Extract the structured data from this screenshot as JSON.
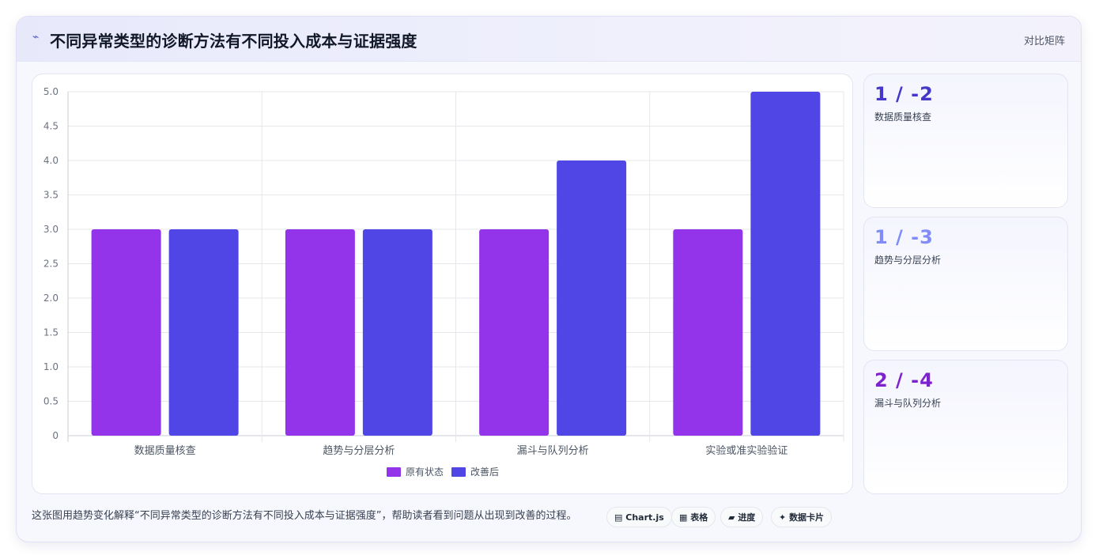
{
  "header": {
    "icon": "trend-line-icon",
    "title": "不同异常类型的诊断方法有不同投入成本与证据强度",
    "action_label": "对比矩阵"
  },
  "chart_data": {
    "type": "bar",
    "categories": [
      "数据质量核查",
      "趋势与分层分析",
      "漏斗与队列分析",
      "实验或准实验验证"
    ],
    "series": [
      {
        "name": "原有状态",
        "values": [
          3,
          3,
          3,
          3
        ],
        "color": "#9333ea"
      },
      {
        "name": "改善后",
        "values": [
          3,
          3,
          4,
          5
        ],
        "color": "#4f46e5"
      }
    ],
    "ylim": [
      0,
      5
    ],
    "yticks": [
      0,
      0.5,
      1.0,
      1.5,
      2.0,
      2.5,
      3.0,
      3.5,
      4.0,
      4.5,
      5.0
    ],
    "ytick_labels": [
      "0",
      "0.5",
      "1.0",
      "1.5",
      "2.0",
      "2.5",
      "3.0",
      "3.5",
      "4.0",
      "4.5",
      "5.0"
    ],
    "grid": true,
    "legend": "bottom-center",
    "title": "",
    "xlabel": "",
    "ylabel": ""
  },
  "stats": [
    {
      "value": "1 / -2",
      "label": "数据质量核查",
      "color": "#4338ca"
    },
    {
      "value": "1 / -3",
      "label": "趋势与分层分析",
      "color": "#818cf8"
    },
    {
      "value": "2 / -4",
      "label": "漏斗与队列分析",
      "color": "#7e22ce"
    }
  ],
  "caption": "这张图用趋势变化解释“不同异常类型的诊断方法有不同投入成本与证据强度”，帮助读者看到问题从出现到改善的过程。",
  "tags": [
    {
      "icon": "chart-icon",
      "glyph": "▤",
      "label": "Chart.js"
    },
    {
      "icon": "table-icon",
      "glyph": "▦",
      "label": "表格"
    },
    {
      "icon": "progress-icon",
      "glyph": "▰",
      "label": "进度"
    },
    {
      "icon": "sparkle-icon",
      "glyph": "✦",
      "label": "数据卡片"
    }
  ]
}
